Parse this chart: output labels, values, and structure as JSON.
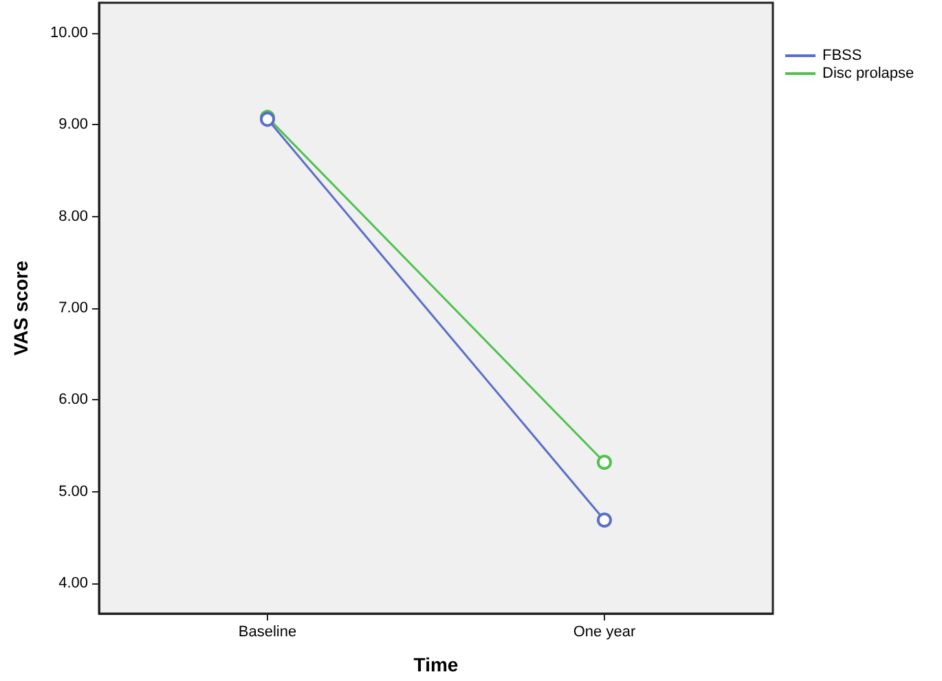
{
  "chart_data": {
    "type": "line",
    "xlabel": "Time",
    "ylabel": "VAS score",
    "categories": [
      "Baseline",
      "One year"
    ],
    "series": [
      {
        "name": "FBSS",
        "color": "#5a6fc7",
        "values": [
          9.06,
          4.69
        ]
      },
      {
        "name": "Disc prolapse",
        "color": "#4ec24e",
        "values": [
          9.08,
          5.32
        ]
      }
    ],
    "ylim": [
      3.67,
      10.33
    ],
    "yticks": [
      {
        "value": 4,
        "label": "4.00"
      },
      {
        "value": 5,
        "label": "5.00"
      },
      {
        "value": 6,
        "label": "6.00"
      },
      {
        "value": 7,
        "label": "7.00"
      },
      {
        "value": 8,
        "label": "8.00"
      },
      {
        "value": 9,
        "label": "9.00"
      },
      {
        "value": 10,
        "label": "10.00"
      }
    ],
    "grid": false,
    "legend": "top right",
    "marker": "circle",
    "line_style": "solid"
  }
}
